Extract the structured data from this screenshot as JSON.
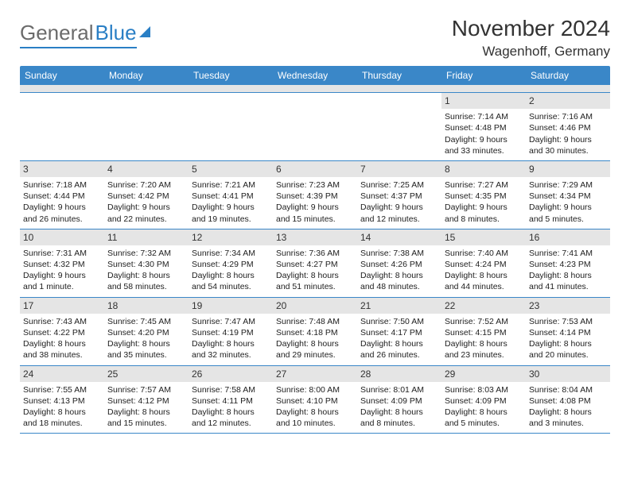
{
  "logo": {
    "word1": "General",
    "word2": "Blue"
  },
  "title": "November 2024",
  "location": "Wagenhoff, Germany",
  "header_bg": "#3a87c8",
  "day_headers": [
    "Sunday",
    "Monday",
    "Tuesday",
    "Wednesday",
    "Thursday",
    "Friday",
    "Saturday"
  ],
  "weeks": [
    [
      null,
      null,
      null,
      null,
      null,
      {
        "n": "1",
        "sr": "Sunrise: 7:14 AM",
        "ss": "Sunset: 4:48 PM",
        "dl": "Daylight: 9 hours and 33 minutes."
      },
      {
        "n": "2",
        "sr": "Sunrise: 7:16 AM",
        "ss": "Sunset: 4:46 PM",
        "dl": "Daylight: 9 hours and 30 minutes."
      }
    ],
    [
      {
        "n": "3",
        "sr": "Sunrise: 7:18 AM",
        "ss": "Sunset: 4:44 PM",
        "dl": "Daylight: 9 hours and 26 minutes."
      },
      {
        "n": "4",
        "sr": "Sunrise: 7:20 AM",
        "ss": "Sunset: 4:42 PM",
        "dl": "Daylight: 9 hours and 22 minutes."
      },
      {
        "n": "5",
        "sr": "Sunrise: 7:21 AM",
        "ss": "Sunset: 4:41 PM",
        "dl": "Daylight: 9 hours and 19 minutes."
      },
      {
        "n": "6",
        "sr": "Sunrise: 7:23 AM",
        "ss": "Sunset: 4:39 PM",
        "dl": "Daylight: 9 hours and 15 minutes."
      },
      {
        "n": "7",
        "sr": "Sunrise: 7:25 AM",
        "ss": "Sunset: 4:37 PM",
        "dl": "Daylight: 9 hours and 12 minutes."
      },
      {
        "n": "8",
        "sr": "Sunrise: 7:27 AM",
        "ss": "Sunset: 4:35 PM",
        "dl": "Daylight: 9 hours and 8 minutes."
      },
      {
        "n": "9",
        "sr": "Sunrise: 7:29 AM",
        "ss": "Sunset: 4:34 PM",
        "dl": "Daylight: 9 hours and 5 minutes."
      }
    ],
    [
      {
        "n": "10",
        "sr": "Sunrise: 7:31 AM",
        "ss": "Sunset: 4:32 PM",
        "dl": "Daylight: 9 hours and 1 minute."
      },
      {
        "n": "11",
        "sr": "Sunrise: 7:32 AM",
        "ss": "Sunset: 4:30 PM",
        "dl": "Daylight: 8 hours and 58 minutes."
      },
      {
        "n": "12",
        "sr": "Sunrise: 7:34 AM",
        "ss": "Sunset: 4:29 PM",
        "dl": "Daylight: 8 hours and 54 minutes."
      },
      {
        "n": "13",
        "sr": "Sunrise: 7:36 AM",
        "ss": "Sunset: 4:27 PM",
        "dl": "Daylight: 8 hours and 51 minutes."
      },
      {
        "n": "14",
        "sr": "Sunrise: 7:38 AM",
        "ss": "Sunset: 4:26 PM",
        "dl": "Daylight: 8 hours and 48 minutes."
      },
      {
        "n": "15",
        "sr": "Sunrise: 7:40 AM",
        "ss": "Sunset: 4:24 PM",
        "dl": "Daylight: 8 hours and 44 minutes."
      },
      {
        "n": "16",
        "sr": "Sunrise: 7:41 AM",
        "ss": "Sunset: 4:23 PM",
        "dl": "Daylight: 8 hours and 41 minutes."
      }
    ],
    [
      {
        "n": "17",
        "sr": "Sunrise: 7:43 AM",
        "ss": "Sunset: 4:22 PM",
        "dl": "Daylight: 8 hours and 38 minutes."
      },
      {
        "n": "18",
        "sr": "Sunrise: 7:45 AM",
        "ss": "Sunset: 4:20 PM",
        "dl": "Daylight: 8 hours and 35 minutes."
      },
      {
        "n": "19",
        "sr": "Sunrise: 7:47 AM",
        "ss": "Sunset: 4:19 PM",
        "dl": "Daylight: 8 hours and 32 minutes."
      },
      {
        "n": "20",
        "sr": "Sunrise: 7:48 AM",
        "ss": "Sunset: 4:18 PM",
        "dl": "Daylight: 8 hours and 29 minutes."
      },
      {
        "n": "21",
        "sr": "Sunrise: 7:50 AM",
        "ss": "Sunset: 4:17 PM",
        "dl": "Daylight: 8 hours and 26 minutes."
      },
      {
        "n": "22",
        "sr": "Sunrise: 7:52 AM",
        "ss": "Sunset: 4:15 PM",
        "dl": "Daylight: 8 hours and 23 minutes."
      },
      {
        "n": "23",
        "sr": "Sunrise: 7:53 AM",
        "ss": "Sunset: 4:14 PM",
        "dl": "Daylight: 8 hours and 20 minutes."
      }
    ],
    [
      {
        "n": "24",
        "sr": "Sunrise: 7:55 AM",
        "ss": "Sunset: 4:13 PM",
        "dl": "Daylight: 8 hours and 18 minutes."
      },
      {
        "n": "25",
        "sr": "Sunrise: 7:57 AM",
        "ss": "Sunset: 4:12 PM",
        "dl": "Daylight: 8 hours and 15 minutes."
      },
      {
        "n": "26",
        "sr": "Sunrise: 7:58 AM",
        "ss": "Sunset: 4:11 PM",
        "dl": "Daylight: 8 hours and 12 minutes."
      },
      {
        "n": "27",
        "sr": "Sunrise: 8:00 AM",
        "ss": "Sunset: 4:10 PM",
        "dl": "Daylight: 8 hours and 10 minutes."
      },
      {
        "n": "28",
        "sr": "Sunrise: 8:01 AM",
        "ss": "Sunset: 4:09 PM",
        "dl": "Daylight: 8 hours and 8 minutes."
      },
      {
        "n": "29",
        "sr": "Sunrise: 8:03 AM",
        "ss": "Sunset: 4:09 PM",
        "dl": "Daylight: 8 hours and 5 minutes."
      },
      {
        "n": "30",
        "sr": "Sunrise: 8:04 AM",
        "ss": "Sunset: 4:08 PM",
        "dl": "Daylight: 8 hours and 3 minutes."
      }
    ]
  ]
}
